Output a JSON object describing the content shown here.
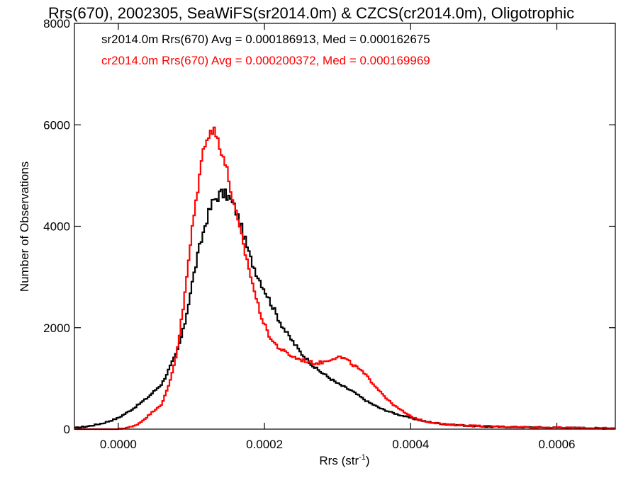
{
  "chart_data": {
    "type": "line",
    "title": "Rrs(670), 2002305, SeaWiFS(sr2014.0m) & CZCS(cr2014.0m), Oligotrophic",
    "xlabel_main": "Rrs (str",
    "xlabel_sup": "-1",
    "xlabel_close": ")",
    "ylabel": "Number of Observations",
    "xlim": [
      -6e-05,
      0.00068
    ],
    "ylim": [
      0,
      8000
    ],
    "x_ticks": [
      0.0,
      0.0002,
      0.0004,
      0.0006
    ],
    "x_tick_labels": [
      "0.0000",
      "0.0002",
      "0.0004",
      "0.0006"
    ],
    "y_ticks": [
      0,
      2000,
      4000,
      6000,
      8000
    ],
    "y_tick_labels": [
      "0",
      "2000",
      "4000",
      "6000",
      "8000"
    ],
    "grid": false,
    "legend_position": "top-left",
    "series": [
      {
        "name": "sr2014.0m Rrs(670) Avg = 0.000186913, Med = 0.000162675",
        "color": "#000000",
        "x": [
          -6e-05,
          -4e-05,
          -2e-05,
          0.0,
          2e-05,
          4e-05,
          6e-05,
          8e-05,
          9e-05,
          0.0001,
          0.00011,
          0.00012,
          0.00013,
          0.00014,
          0.00015,
          0.00016,
          0.00017,
          0.00018,
          0.00019,
          0.0002,
          0.00021,
          0.00022,
          0.00023,
          0.00024,
          0.00025,
          0.00026,
          0.00027,
          0.00028,
          0.0003,
          0.00032,
          0.00034,
          0.00036,
          0.00038,
          0.0004,
          0.00042,
          0.00045,
          0.0005,
          0.00055,
          0.0006,
          0.00065,
          0.00068
        ],
        "y": [
          20,
          60,
          120,
          220,
          400,
          620,
          900,
          1500,
          2000,
          2800,
          3500,
          4100,
          4500,
          4650,
          4600,
          4350,
          3900,
          3400,
          3050,
          2750,
          2450,
          2150,
          1900,
          1700,
          1500,
          1350,
          1200,
          1100,
          900,
          750,
          550,
          400,
          300,
          220,
          150,
          90,
          50,
          40,
          30,
          20,
          15
        ]
      },
      {
        "name": "cr2014.0m Rrs(670) Avg = 0.000200372, Med = 0.000169969",
        "color": "#ff0000",
        "x": [
          -6e-05,
          0.0,
          2e-05,
          3e-05,
          4e-05,
          5e-05,
          6e-05,
          7e-05,
          8e-05,
          9e-05,
          0.0001,
          0.00011,
          0.00012,
          0.00013,
          0.00014,
          0.00015,
          0.00016,
          0.00017,
          0.00018,
          0.00019,
          0.0002,
          0.00021,
          0.00022,
          0.00023,
          0.00024,
          0.00025,
          0.00026,
          0.00027,
          0.00028,
          0.00029,
          0.0003,
          0.00031,
          0.00032,
          0.00033,
          0.00034,
          0.00035,
          0.00036,
          0.00037,
          0.00038,
          0.0004,
          0.00042,
          0.00045,
          0.0005,
          0.00055,
          0.0006,
          0.00065,
          0.00068
        ],
        "y": [
          0,
          0,
          50,
          130,
          250,
          380,
          500,
          900,
          1500,
          2500,
          3800,
          4900,
          5800,
          5900,
          5600,
          5000,
          4300,
          3700,
          3100,
          2500,
          2050,
          1750,
          1600,
          1500,
          1420,
          1370,
          1330,
          1300,
          1320,
          1380,
          1430,
          1390,
          1280,
          1180,
          1040,
          880,
          720,
          560,
          440,
          250,
          150,
          90,
          60,
          40,
          30,
          20,
          15
        ]
      }
    ]
  }
}
